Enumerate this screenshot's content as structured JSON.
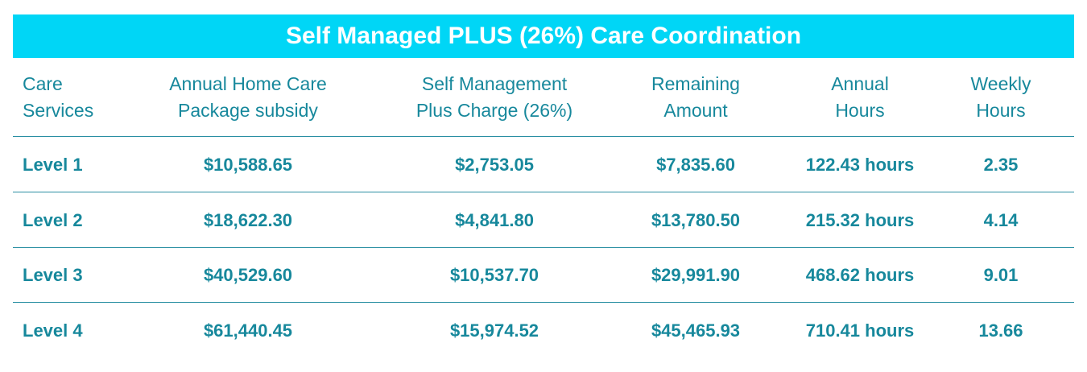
{
  "title": "Self Managed PLUS (26%) Care Coordination",
  "table": {
    "headers": [
      [
        "Care",
        "Services"
      ],
      [
        "Annual Home Care",
        "Package subsidy"
      ],
      [
        "Self Management",
        "Plus Charge (26%)"
      ],
      [
        "Remaining",
        "Amount"
      ],
      [
        "Annual",
        "Hours"
      ],
      [
        "Weekly",
        "Hours"
      ]
    ],
    "rows": [
      [
        "Level 1",
        "$10,588.65",
        "$2,753.05",
        "$7,835.60",
        "122.43 hours",
        "2.35"
      ],
      [
        "Level 2",
        "$18,622.30",
        "$4,841.80",
        "$13,780.50",
        "215.32 hours",
        "4.14"
      ],
      [
        "Level 3",
        "$40,529.60",
        "$10,537.70",
        "$29,991.90",
        "468.62 hours",
        "9.01"
      ],
      [
        "Level 4",
        "$61,440.45",
        "$15,974.52",
        "$45,465.93",
        "710.41 hours",
        "13.66"
      ]
    ]
  }
}
